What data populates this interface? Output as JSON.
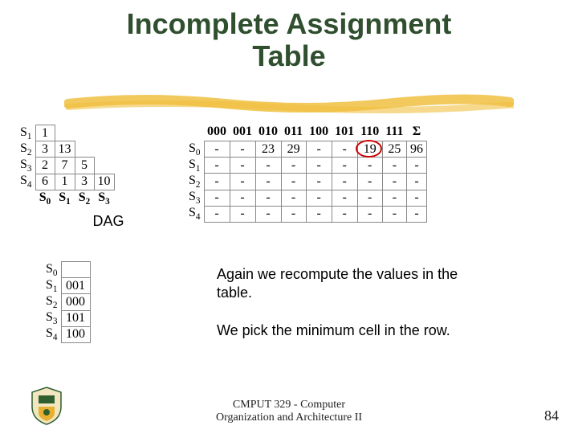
{
  "title_line1": "Incomplete Assignment",
  "title_line2": "Table",
  "title_color": "#2f4f2f",
  "stroke_color": "#f0c040",
  "dag": {
    "row_labels": [
      "S1",
      "S2",
      "S3",
      "S4"
    ],
    "col_labels": [
      "S0",
      "S1",
      "S2",
      "S3"
    ],
    "rows": [
      [
        "1",
        "",
        "",
        ""
      ],
      [
        "3",
        "13",
        "",
        ""
      ],
      [
        "2",
        "7",
        "5",
        ""
      ],
      [
        "6",
        "1",
        "3",
        "10"
      ]
    ],
    "label": "DAG"
  },
  "cost": {
    "row_labels": [
      "S0",
      "S1",
      "S2",
      "S3",
      "S4"
    ],
    "col_labels": [
      "000",
      "001",
      "010",
      "011",
      "100",
      "101",
      "110",
      "111",
      "Σ"
    ],
    "rows": [
      [
        "-",
        "-",
        "23",
        "29",
        "-",
        "-",
        "19",
        "25",
        "96"
      ],
      [
        "-",
        "-",
        "-",
        "-",
        "-",
        "-",
        "-",
        "-",
        "-"
      ],
      [
        "-",
        "-",
        "-",
        "-",
        "-",
        "-",
        "-",
        "-",
        "-"
      ],
      [
        "-",
        "-",
        "-",
        "-",
        "-",
        "-",
        "-",
        "-",
        "-"
      ],
      [
        "-",
        "-",
        "-",
        "-",
        "-",
        "-",
        "-",
        "-",
        "-"
      ]
    ],
    "circle": {
      "row": 0,
      "col": 6,
      "color": "#cc0000"
    }
  },
  "assign": {
    "row_labels": [
      "S0",
      "S1",
      "S2",
      "S3",
      "S4"
    ],
    "values": [
      "",
      "001",
      "000",
      "101",
      "100"
    ]
  },
  "text1": "Again we recompute the values in the table.",
  "text2": "We pick the minimum cell in the row.",
  "footer_line1": "CMPUT 329 - Computer",
  "footer_line2": "Organization and Architecture II",
  "pagenum": "84"
}
